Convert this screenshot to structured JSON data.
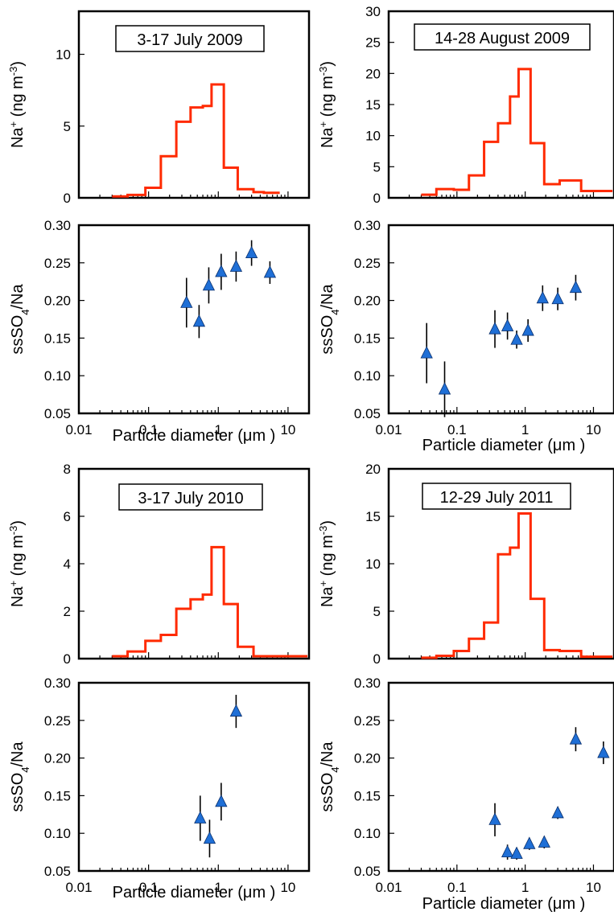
{
  "chart_data": [
    {
      "type": "line",
      "step": true,
      "title": "3-17 July 2009",
      "ylabel": "Na+ (ng m-3)",
      "ylabel_main": "Na",
      "ylabel_sup": "+",
      "ylabel_unit": "(ng m",
      "ylabel_unit_sup": "-3",
      "ylabel_close": ")",
      "x_scale": "log",
      "xlim": [
        0.01,
        20
      ],
      "ylim": [
        0,
        13
      ],
      "yticks": [
        "0",
        "5",
        "10"
      ],
      "ytick_values": [
        0,
        5,
        10
      ],
      "color": "#ff2a00",
      "bin_edges": [
        0.03,
        0.05,
        0.09,
        0.15,
        0.25,
        0.4,
        0.6,
        0.8,
        1.2,
        1.9,
        3.2,
        4.5,
        7.6
      ],
      "values": [
        0.1,
        0.2,
        0.7,
        2.9,
        5.3,
        6.3,
        6.4,
        7.9,
        2.1,
        0.6,
        0.4,
        0.35
      ]
    },
    {
      "type": "line",
      "step": true,
      "title": "14-28 August 2009",
      "ylabel": "Na+ (ng m-3)",
      "ylabel_main": "Na",
      "ylabel_sup": "+",
      "ylabel_unit": "(ng m",
      "ylabel_unit_sup": "-3",
      "ylabel_close": ")",
      "x_scale": "log",
      "xlim": [
        0.01,
        20
      ],
      "ylim": [
        0,
        30
      ],
      "yticks": [
        "0",
        "5",
        "10",
        "15",
        "20",
        "25",
        "30"
      ],
      "ytick_values": [
        0,
        5,
        10,
        15,
        20,
        25,
        30
      ],
      "color": "#ff2a00",
      "bin_edges": [
        0.03,
        0.05,
        0.09,
        0.15,
        0.25,
        0.4,
        0.6,
        0.8,
        1.2,
        1.9,
        3.2,
        6.6,
        19
      ],
      "values": [
        0.5,
        1.4,
        1.3,
        3.6,
        9.0,
        12.0,
        16.3,
        20.7,
        8.8,
        2.2,
        2.8,
        1.1
      ]
    },
    {
      "type": "scatter",
      "ylabel": "ssSO4/Na",
      "ylabel_main": "ssSO",
      "ylabel_sub": "4",
      "ylabel_rest": "/Na",
      "xlabel": "Particle diameter (μm )",
      "x_scale": "log",
      "xlim": [
        0.01,
        20
      ],
      "ylim": [
        0.05,
        0.3
      ],
      "yticks": [
        "0.05",
        "0.10",
        "0.15",
        "0.20",
        "0.25",
        "0.30"
      ],
      "ytick_values": [
        0.05,
        0.1,
        0.15,
        0.2,
        0.25,
        0.3
      ],
      "xticks": [
        "0.01",
        "0.1",
        "1",
        "10"
      ],
      "xtick_values": [
        0.01,
        0.1,
        1,
        10
      ],
      "color": "#1f6fd6",
      "points": [
        {
          "x": 0.35,
          "y": 0.197,
          "err": 0.033
        },
        {
          "x": 0.53,
          "y": 0.172,
          "err": 0.022
        },
        {
          "x": 0.73,
          "y": 0.22,
          "err": 0.024
        },
        {
          "x": 1.1,
          "y": 0.238,
          "err": 0.024
        },
        {
          "x": 1.8,
          "y": 0.245,
          "err": 0.02
        },
        {
          "x": 3.0,
          "y": 0.263,
          "err": 0.017
        },
        {
          "x": 5.5,
          "y": 0.237,
          "err": 0.015
        }
      ]
    },
    {
      "type": "scatter",
      "ylabel": "ssSO4/Na",
      "ylabel_main": "ssSO",
      "ylabel_sub": "4",
      "ylabel_rest": "/Na",
      "xlabel": "Particle diameter (μm )",
      "x_scale": "log",
      "xlim": [
        0.01,
        20
      ],
      "ylim": [
        0.05,
        0.3
      ],
      "yticks": [
        "0.05",
        "0.10",
        "0.15",
        "0.20",
        "0.25",
        "0.30"
      ],
      "ytick_values": [
        0.05,
        0.1,
        0.15,
        0.2,
        0.25,
        0.3
      ],
      "xticks": [
        "0.01",
        "0.1",
        "1",
        "10"
      ],
      "xtick_values": [
        0.01,
        0.1,
        1,
        10
      ],
      "color": "#1f6fd6",
      "points": [
        {
          "x": 0.036,
          "y": 0.13,
          "err": 0.04
        },
        {
          "x": 0.066,
          "y": 0.082,
          "err": 0.037
        },
        {
          "x": 0.36,
          "y": 0.162,
          "err": 0.025
        },
        {
          "x": 0.55,
          "y": 0.166,
          "err": 0.018
        },
        {
          "x": 0.75,
          "y": 0.148,
          "err": 0.012
        },
        {
          "x": 1.1,
          "y": 0.16,
          "err": 0.015
        },
        {
          "x": 1.8,
          "y": 0.203,
          "err": 0.017
        },
        {
          "x": 3.0,
          "y": 0.202,
          "err": 0.015
        },
        {
          "x": 5.5,
          "y": 0.217,
          "err": 0.017
        }
      ]
    },
    {
      "type": "line",
      "step": true,
      "title": "3-17 July 2010",
      "ylabel": "Na+ (ng m-3)",
      "ylabel_main": "Na",
      "ylabel_sup": "+",
      "ylabel_unit": "(ng m",
      "ylabel_unit_sup": "-3",
      "ylabel_close": ")",
      "x_scale": "log",
      "xlim": [
        0.01,
        20
      ],
      "ylim": [
        0,
        8
      ],
      "yticks": [
        "0",
        "2",
        "4",
        "6",
        "8"
      ],
      "ytick_values": [
        0,
        2,
        4,
        6,
        8
      ],
      "color": "#ff2a00",
      "bin_edges": [
        0.03,
        0.05,
        0.09,
        0.15,
        0.25,
        0.4,
        0.6,
        0.8,
        1.2,
        1.9,
        3.2,
        6.6,
        19
      ],
      "values": [
        0.1,
        0.3,
        0.75,
        1.0,
        2.1,
        2.5,
        2.7,
        4.7,
        2.3,
        0.5,
        0.1,
        0.1
      ]
    },
    {
      "type": "line",
      "step": true,
      "title": "12-29 July 2011",
      "ylabel": "Na+ (ng m-3)",
      "ylabel_main": "Na",
      "ylabel_sup": "+",
      "ylabel_unit": "(ng m",
      "ylabel_unit_sup": "-3",
      "ylabel_close": ")",
      "x_scale": "log",
      "xlim": [
        0.01,
        20
      ],
      "ylim": [
        0,
        20
      ],
      "yticks": [
        "0",
        "5",
        "10",
        "15",
        "20"
      ],
      "ytick_values": [
        0,
        5,
        10,
        15,
        20
      ],
      "color": "#ff2a00",
      "bin_edges": [
        0.03,
        0.05,
        0.09,
        0.15,
        0.25,
        0.4,
        0.6,
        0.8,
        1.2,
        1.9,
        3.2,
        6.6,
        19
      ],
      "values": [
        0.1,
        0.3,
        0.8,
        2.1,
        3.8,
        11.0,
        11.7,
        15.3,
        6.3,
        0.9,
        0.8,
        0.2
      ]
    },
    {
      "type": "scatter",
      "ylabel": "ssSO4/Na",
      "ylabel_main": "ssSO",
      "ylabel_sub": "4",
      "ylabel_rest": "/Na",
      "xlabel": "Particle diameter (μm )",
      "x_scale": "log",
      "xlim": [
        0.01,
        20
      ],
      "ylim": [
        0.05,
        0.3
      ],
      "yticks": [
        "0.05",
        "0.10",
        "0.15",
        "0.20",
        "0.25",
        "0.30"
      ],
      "ytick_values": [
        0.05,
        0.1,
        0.15,
        0.2,
        0.25,
        0.3
      ],
      "xticks": [
        "0.01",
        "0.1",
        "1",
        "10"
      ],
      "xtick_values": [
        0.01,
        0.1,
        1,
        10
      ],
      "color": "#1f6fd6",
      "points": [
        {
          "x": 0.55,
          "y": 0.12,
          "err": 0.03
        },
        {
          "x": 0.75,
          "y": 0.093,
          "err": 0.025
        },
        {
          "x": 1.1,
          "y": 0.142,
          "err": 0.025
        },
        {
          "x": 1.8,
          "y": 0.262,
          "err": 0.022
        }
      ]
    },
    {
      "type": "scatter",
      "ylabel": "ssSO4/Na",
      "ylabel_main": "ssSO",
      "ylabel_sub": "4",
      "ylabel_rest": "/Na",
      "xlabel": "Particle diameter (μm )",
      "x_scale": "log",
      "xlim": [
        0.01,
        20
      ],
      "ylim": [
        0.05,
        0.3
      ],
      "yticks": [
        "0.05",
        "0.10",
        "0.15",
        "0.20",
        "0.25",
        "0.30"
      ],
      "ytick_values": [
        0.05,
        0.1,
        0.15,
        0.2,
        0.25,
        0.3
      ],
      "xticks": [
        "0.01",
        "0.1",
        "1",
        "10"
      ],
      "xtick_values": [
        0.01,
        0.1,
        1,
        10
      ],
      "color": "#1f6fd6",
      "points": [
        {
          "x": 0.36,
          "y": 0.118,
          "err": 0.022
        },
        {
          "x": 0.55,
          "y": 0.075,
          "err": 0.01
        },
        {
          "x": 0.75,
          "y": 0.073,
          "err": 0.008
        },
        {
          "x": 1.15,
          "y": 0.086,
          "err": 0.008
        },
        {
          "x": 1.9,
          "y": 0.088,
          "err": 0.008
        },
        {
          "x": 3.0,
          "y": 0.127,
          "err": 0.008
        },
        {
          "x": 5.5,
          "y": 0.225,
          "err": 0.016
        },
        {
          "x": 14.0,
          "y": 0.207,
          "err": 0.015
        }
      ]
    }
  ]
}
